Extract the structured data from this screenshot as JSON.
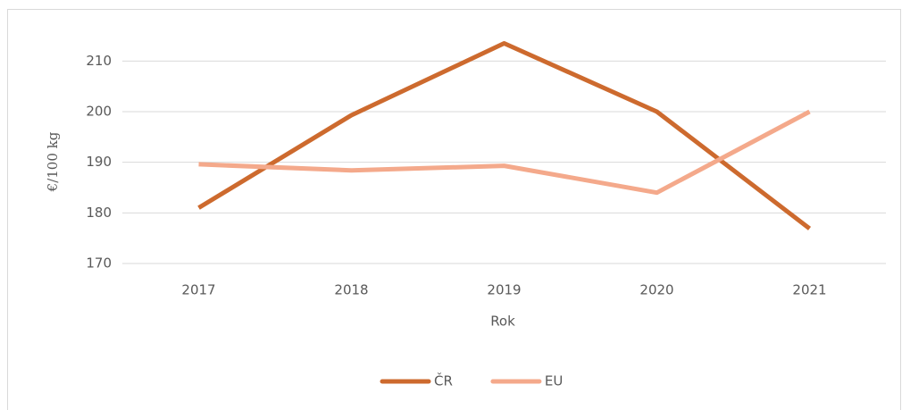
{
  "chart_data": {
    "type": "line",
    "x_label": "Rok",
    "y_label": "€/100 kg",
    "categories": [
      "2017",
      "2018",
      "2019",
      "2020",
      "2021"
    ],
    "series": [
      {
        "name": "ČR",
        "color": "#cd6a2e",
        "values": [
          181,
          199.3,
          213.5,
          200,
          176.9
        ]
      },
      {
        "name": "EU",
        "color": "#f4a98b",
        "values": [
          189.6,
          188.4,
          189.3,
          184,
          200
        ]
      }
    ],
    "ylim": [
      170,
      215
    ],
    "yticks": [
      170,
      180,
      190,
      200,
      210
    ],
    "grid": true,
    "legend": "bottom"
  }
}
